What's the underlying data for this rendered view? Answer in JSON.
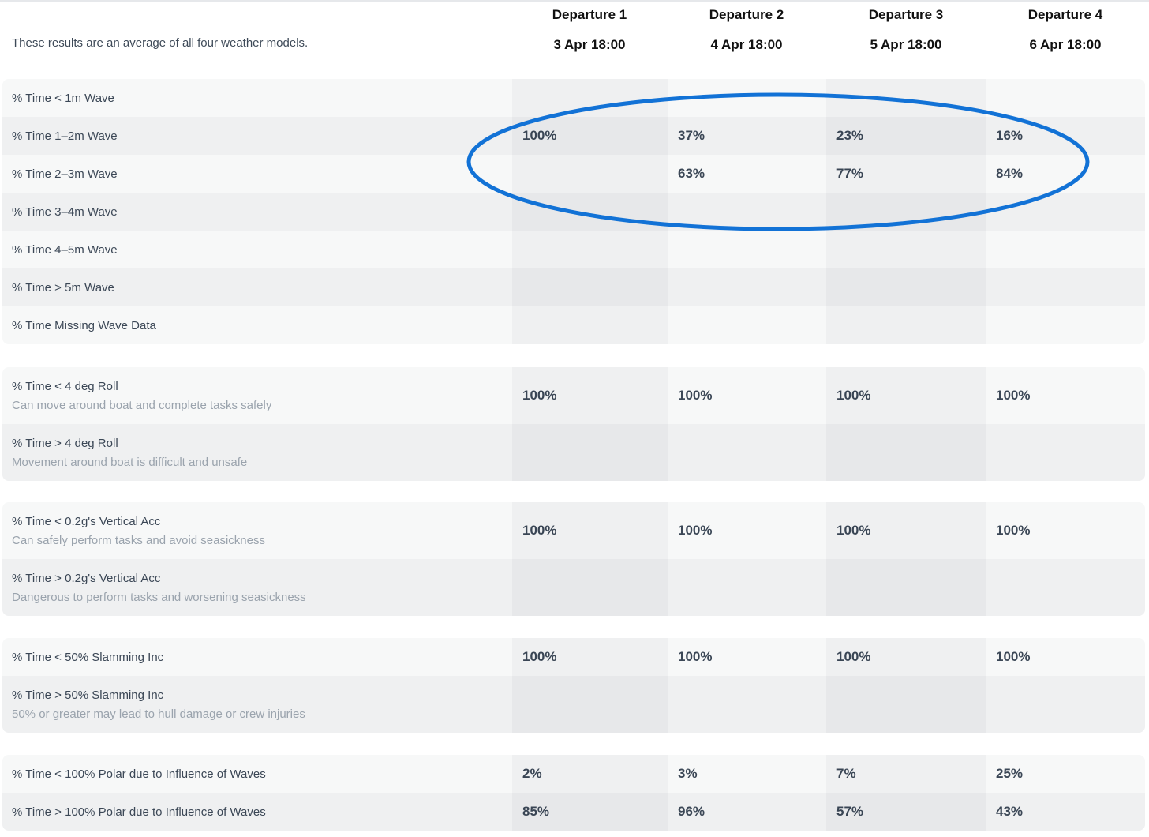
{
  "header": {
    "note": "These results are an average of all four weather models.",
    "departures": [
      {
        "name": "Departure 1",
        "date": "3 Apr 18:00"
      },
      {
        "name": "Departure 2",
        "date": "4 Apr 18:00"
      },
      {
        "name": "Departure 3",
        "date": "5 Apr 18:00"
      },
      {
        "name": "Departure 4",
        "date": "6 Apr 18:00"
      }
    ]
  },
  "colors": {
    "row_light": "#f7f8f8",
    "row_dark": "#eff0f1",
    "col_shade": "rgba(20,30,45,0.035)",
    "annotation": "#1272d6"
  },
  "groups": [
    {
      "rows": [
        {
          "label": "% Time < 1m Wave",
          "values": [
            "",
            "",
            "",
            ""
          ]
        },
        {
          "label": "% Time 1–2m Wave",
          "values": [
            "100%",
            "37%",
            "23%",
            "16%"
          ]
        },
        {
          "label": "% Time 2–3m Wave",
          "values": [
            "",
            "63%",
            "77%",
            "84%"
          ]
        },
        {
          "label": "% Time 3–4m Wave",
          "values": [
            "",
            "",
            "",
            ""
          ]
        },
        {
          "label": "% Time 4–5m Wave",
          "values": [
            "",
            "",
            "",
            ""
          ]
        },
        {
          "label": "% Time > 5m Wave",
          "values": [
            "",
            "",
            "",
            ""
          ]
        },
        {
          "label": "% Time Missing Wave Data",
          "values": [
            "",
            "",
            "",
            ""
          ]
        }
      ]
    },
    {
      "rows": [
        {
          "label": "% Time < 4 deg Roll",
          "sub": "Can move around boat and complete tasks safely",
          "values": [
            "100%",
            "100%",
            "100%",
            "100%"
          ]
        },
        {
          "label": "% Time > 4 deg Roll",
          "sub": "Movement around boat is difficult and unsafe",
          "values": [
            "",
            "",
            "",
            ""
          ]
        }
      ]
    },
    {
      "rows": [
        {
          "label": "% Time < 0.2g's Vertical Acc",
          "sub": "Can safely perform tasks and avoid seasickness",
          "values": [
            "100%",
            "100%",
            "100%",
            "100%"
          ]
        },
        {
          "label": "% Time > 0.2g's Vertical Acc",
          "sub": "Dangerous to perform tasks and worsening seasickness",
          "values": [
            "",
            "",
            "",
            ""
          ]
        }
      ]
    },
    {
      "rows": [
        {
          "label": "% Time < 50% Slamming Inc",
          "values": [
            "100%",
            "100%",
            "100%",
            "100%"
          ]
        },
        {
          "label": "% Time > 50% Slamming Inc",
          "sub": "50% or greater may lead to hull damage or crew injuries",
          "values": [
            "",
            "",
            "",
            ""
          ]
        }
      ]
    },
    {
      "rows": [
        {
          "label": "% Time < 100% Polar due to Influence of Waves",
          "values": [
            "2%",
            "3%",
            "7%",
            "25%"
          ]
        },
        {
          "label": "% Time > 100% Polar due to Influence of Waves",
          "values": [
            "85%",
            "96%",
            "57%",
            "43%"
          ]
        }
      ]
    }
  ]
}
